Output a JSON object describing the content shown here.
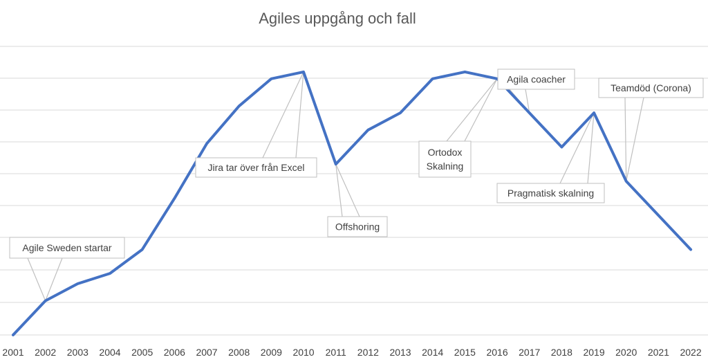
{
  "chart_data": {
    "type": "line",
    "title": "Agiles uppgång och fall",
    "xlabel": "",
    "ylabel": "",
    "categories": [
      "2001",
      "2002",
      "2003",
      "2004",
      "2005",
      "2006",
      "2007",
      "2008",
      "2009",
      "2010",
      "2011",
      "2012",
      "2013",
      "2014",
      "2015",
      "2016",
      "2017",
      "2018",
      "2019",
      "2020",
      "2021",
      "2022"
    ],
    "series": [
      {
        "values": [
          0,
          1,
          1.5,
          1.8,
          2.5,
          4,
          5.6,
          6.7,
          7.5,
          7.7,
          5,
          6,
          6.5,
          7.5,
          7.7,
          7.5,
          6.5,
          5.5,
          6.5,
          4.5,
          3.5,
          2.5
        ],
        "color": "#4472c4"
      }
    ],
    "ylim": [
      0,
      9.4
    ],
    "grid": true,
    "legend": "none",
    "annotations": [
      {
        "lines": [
          "Agile Sweden startar"
        ],
        "point": "2002"
      },
      {
        "lines": [
          "Jira tar över från Excel"
        ],
        "point": "2010"
      },
      {
        "lines": [
          "Offshoring"
        ],
        "point": "2011"
      },
      {
        "lines": [
          "Ortodox",
          "Skalning"
        ],
        "point": "2016"
      },
      {
        "lines": [
          "Agila coacher"
        ],
        "point": "2016"
      },
      {
        "lines": [
          "Pragmatisk skalning"
        ],
        "point": "2019"
      },
      {
        "lines": [
          "Teamdöd (Corona)"
        ],
        "point": "2020"
      }
    ]
  }
}
